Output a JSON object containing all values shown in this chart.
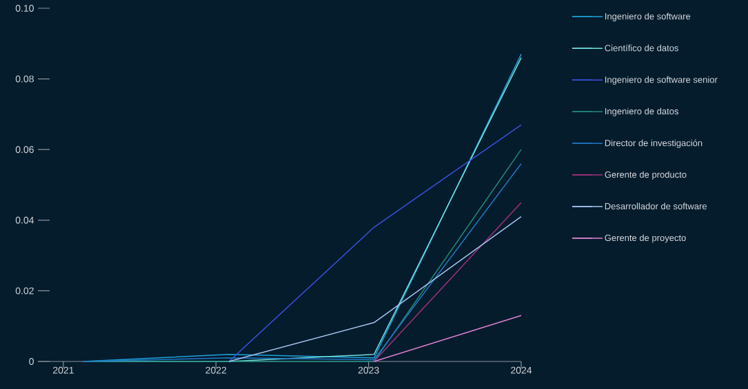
{
  "chart_data": {
    "type": "line",
    "x": [
      "2021-02-17",
      "2022-02-01",
      "2023-01-14",
      "2024-01-01"
    ],
    "xlim": [
      "2020-11-01",
      "2024-01-01"
    ],
    "xticks": [
      "2021",
      "2022",
      "2023",
      "2024"
    ],
    "ylim": [
      0,
      0.1
    ],
    "yticks": [
      0,
      0.02,
      0.04,
      0.06,
      0.08,
      {
        "value": 0.1,
        "label": "0.10"
      }
    ],
    "legend": "right",
    "series": [
      {
        "name": "Ingeniero de software",
        "color": "#1fa2dc",
        "values": [
          0,
          0.002,
          0.001,
          0.087
        ]
      },
      {
        "name": "Científico de datos",
        "color": "#72e0de",
        "values": [
          0,
          0,
          0.002,
          0.086
        ]
      },
      {
        "name": "Ingeniero de software senior",
        "color": "#3b50e0",
        "values": [
          null,
          0,
          0.038,
          0.067
        ]
      },
      {
        "name": "Ingeniero de datos",
        "color": "#218a7c",
        "values": [
          0,
          0,
          0,
          0.06
        ]
      },
      {
        "name": "Director de investigación",
        "color": "#2078c8",
        "values": [
          0,
          0.001,
          0.0005,
          0.056
        ]
      },
      {
        "name": "Gerente de producto",
        "color": "#a2307c",
        "values": [
          null,
          null,
          0,
          0.045
        ]
      },
      {
        "name": "Desarrollador de software",
        "color": "#a6c4f0",
        "values": [
          null,
          0,
          0.011,
          0.041
        ]
      },
      {
        "name": "Gerente de proyecto",
        "color": "#e082d2",
        "values": [
          null,
          null,
          0,
          0.013
        ]
      }
    ]
  }
}
